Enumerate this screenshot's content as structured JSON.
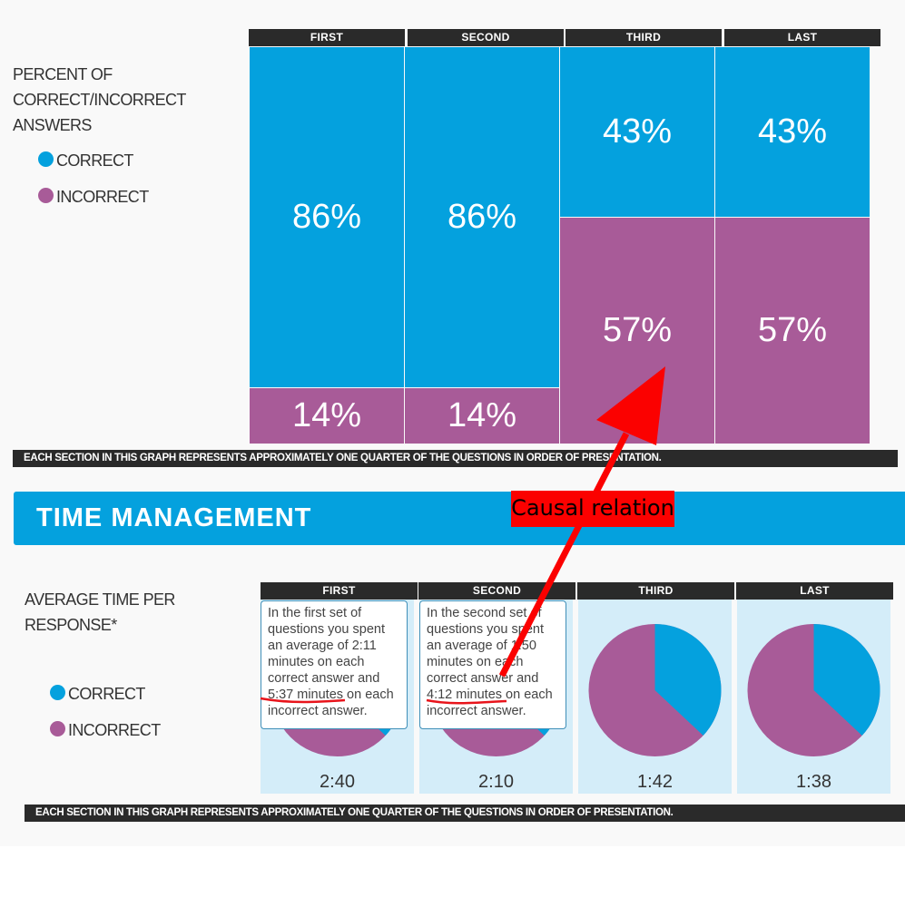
{
  "colors": {
    "correct": "#04a1de",
    "incorrect": "#a85b98",
    "header": "#2a2a2a",
    "banner": "#04a1de",
    "pie_bg": "#d4edf9",
    "annotation": "#fb0100"
  },
  "chart_data": [
    {
      "type": "bar",
      "stacked": true,
      "categories": [
        "FIRST",
        "SECOND",
        "THIRD",
        "LAST"
      ],
      "series": [
        {
          "name": "CORRECT",
          "values": [
            86,
            86,
            43,
            43
          ]
        },
        {
          "name": "INCORRECT",
          "values": [
            14,
            14,
            57,
            57
          ]
        }
      ],
      "value_labels": {
        "correct": [
          "86%",
          "86%",
          "43%",
          "43%"
        ],
        "incorrect": [
          "14%",
          "14%",
          "57%",
          "57%"
        ]
      },
      "title": "PERCENT OF CORRECT/INCORRECT ANSWERS",
      "ylim": [
        0,
        100
      ],
      "legend": [
        "CORRECT",
        "INCORRECT"
      ],
      "legend_position": "left",
      "footnote": "EACH SECTION IN THIS GRAPH REPRESENTS APPROXIMATELY ONE QUARTER OF THE QUESTIONS IN ORDER OF PRESENTATION."
    },
    {
      "type": "pie",
      "categories": [
        "FIRST",
        "SECOND",
        "THIRD",
        "LAST"
      ],
      "slices": [
        {
          "correct": 37,
          "incorrect": 63
        },
        {
          "correct": 37,
          "incorrect": 63
        },
        {
          "correct": 37,
          "incorrect": 63
        },
        {
          "correct": 37,
          "incorrect": 63
        }
      ],
      "averages": [
        "2:40",
        "2:10",
        "1:42",
        "1:38"
      ],
      "title": "AVERAGE TIME PER RESPONSE*",
      "legend": [
        "CORRECT",
        "INCORRECT"
      ],
      "legend_position": "left",
      "footnote": "EACH SECTION IN THIS GRAPH REPRESENTS APPROXIMATELY ONE QUARTER OF THE QUESTIONS IN ORDER OF PRESENTATION."
    }
  ],
  "section1": {
    "title_lines": [
      "PERCENT OF",
      "CORRECT/INCORRECT",
      "ANSWERS"
    ],
    "legend_correct": "CORRECT",
    "legend_incorrect": "INCORRECT"
  },
  "section2": {
    "banner": "TIME MANAGEMENT",
    "title_lines": [
      "AVERAGE TIME PER",
      "RESPONSE*"
    ],
    "legend_correct": "CORRECT",
    "legend_incorrect": "INCORRECT"
  },
  "tooltips": [
    "In the first set of questions you spent an average of 2:11 minutes on each correct answer and 5:37 minutes on each incorrect answer.",
    "In the second set of questions you spent an average of 1:50 minutes on each correct answer and 4:12 minutes on each incorrect answer."
  ],
  "annotation": {
    "label": "Causal relation"
  }
}
